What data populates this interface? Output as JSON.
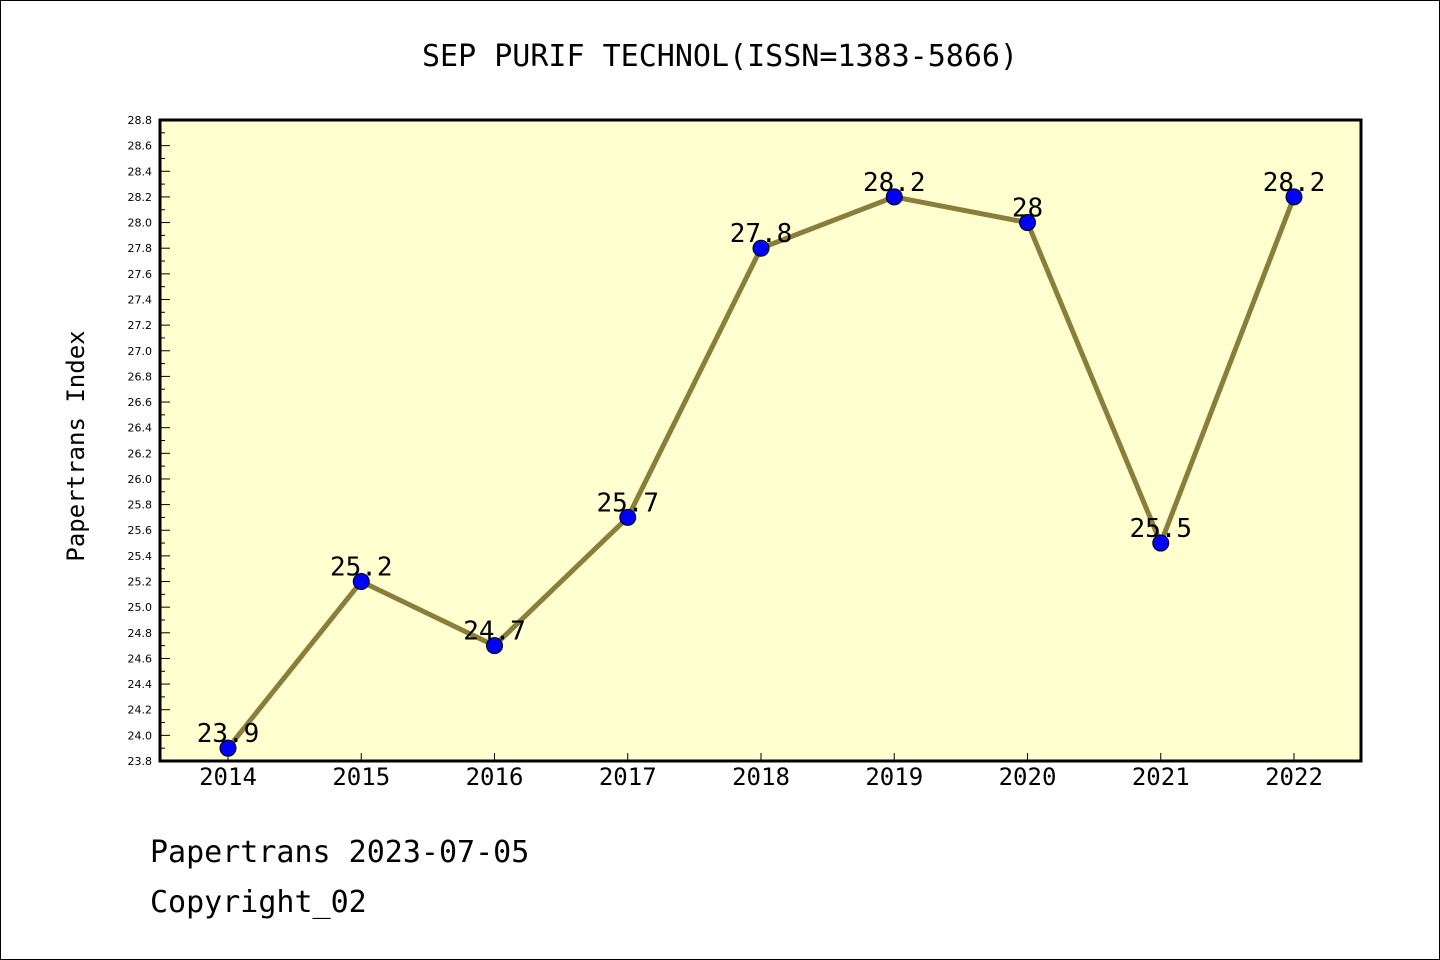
{
  "chart_data": {
    "type": "line",
    "title": "SEP PURIF TECHNOL(ISSN=1383-5866)",
    "xlabel": "",
    "ylabel": "Papertrans Index",
    "categories": [
      "2014",
      "2015",
      "2016",
      "2017",
      "2018",
      "2019",
      "2020",
      "2021",
      "2022"
    ],
    "values": [
      23.9,
      25.2,
      24.7,
      25.7,
      27.8,
      28.2,
      28,
      25.5,
      28.2
    ],
    "data_labels": [
      "23.9",
      "25.2",
      "24.7",
      "25.7",
      "27.8",
      "28.2",
      "28",
      "25.5",
      "28.2"
    ],
    "ylim": [
      23.8,
      28.8
    ],
    "yticks": [
      "23.8",
      "24.0",
      "24.2",
      "24.4",
      "24.6",
      "24.8",
      "25.0",
      "25.2",
      "25.4",
      "25.6",
      "25.8",
      "26.0",
      "26.2",
      "26.4",
      "26.6",
      "26.8",
      "27.0",
      "27.2",
      "27.4",
      "27.6",
      "27.8",
      "28.0",
      "28.2",
      "28.4",
      "28.6",
      "28.8"
    ],
    "grid": false,
    "colors": {
      "plot_background": "#ffffd0",
      "line": "#8b7d3a",
      "marker": "#0000ff"
    }
  },
  "footer": {
    "line1": "Papertrans 2023-07-05",
    "line2": "Copyright_02"
  }
}
